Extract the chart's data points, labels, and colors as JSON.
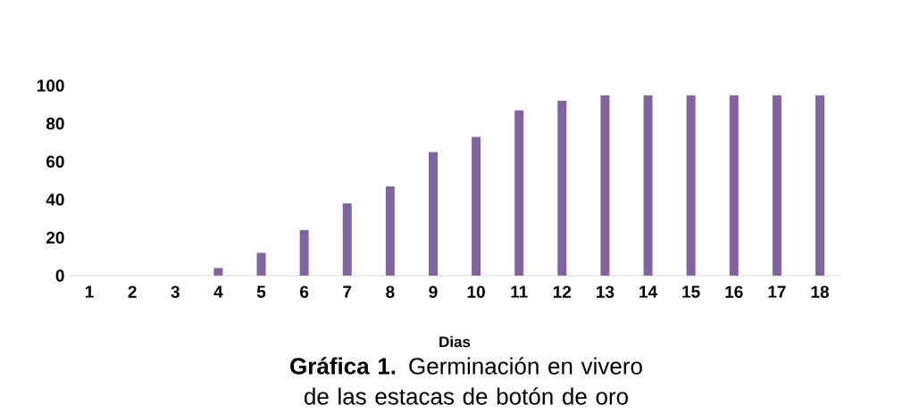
{
  "chart_data": {
    "type": "bar",
    "title": "**Gráfica 1.** Germinación en vivero de las estacas de botón de oro",
    "xlabel": "Dias",
    "categories": [
      "1",
      "2",
      "3",
      "4",
      "5",
      "6",
      "7",
      "8",
      "9",
      "10",
      "11",
      "12",
      "13",
      "14",
      "15",
      "16",
      "17",
      "18"
    ],
    "values": [
      0,
      0,
      0,
      4,
      12,
      24,
      38,
      47,
      65,
      73,
      87,
      92,
      95,
      95,
      95,
      95,
      95,
      95
    ],
    "color": "#8064a2",
    "ylim": [
      0,
      100
    ],
    "yticks": [
      0,
      20,
      40,
      60,
      80,
      100
    ],
    "grid": false
  }
}
